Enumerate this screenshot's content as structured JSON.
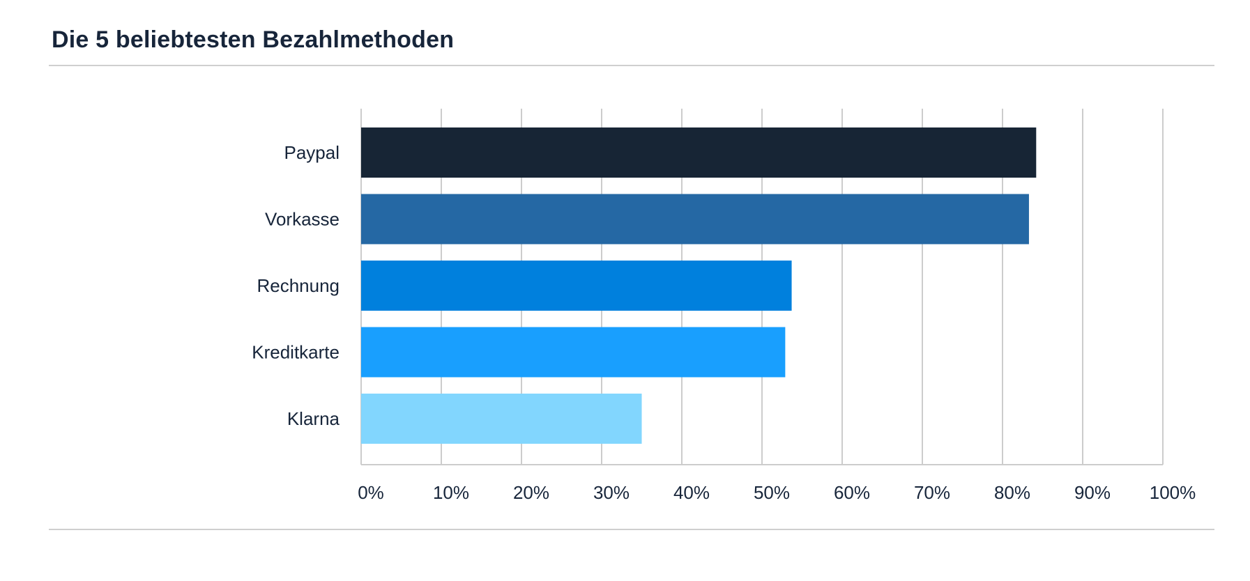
{
  "chart_data": {
    "type": "bar",
    "orientation": "horizontal",
    "title": "Die 5 beliebtesten Bezahlmethoden",
    "categories": [
      "Paypal",
      "Vorkasse",
      "Rechnung",
      "Kreditkarte",
      "Klarna"
    ],
    "values": [
      84.2,
      83.3,
      53.7,
      52.9,
      35.0
    ],
    "colors": [
      "#172535",
      "#2568a4",
      "#0080dd",
      "#199ffe",
      "#82d6fe"
    ],
    "xlim": [
      0,
      100
    ],
    "xticks": [
      0,
      10,
      20,
      30,
      40,
      50,
      60,
      70,
      80,
      90,
      100
    ],
    "xtick_labels": [
      "0%",
      "10%",
      "20%",
      "30%",
      "40%",
      "50%",
      "60%",
      "70%",
      "80%",
      "90%",
      "100%"
    ],
    "xlabel": "",
    "ylabel": "",
    "grid": "vertical",
    "legend": "none"
  }
}
